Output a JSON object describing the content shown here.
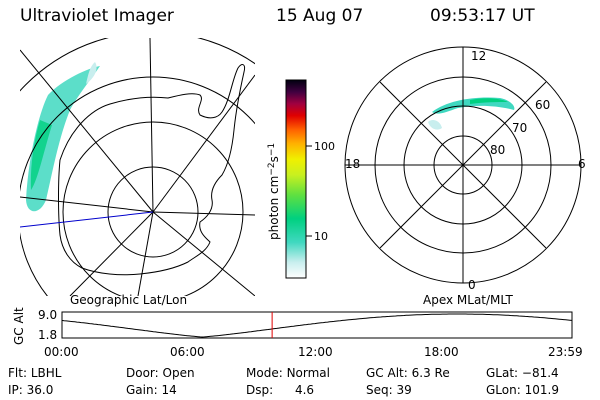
{
  "header": {
    "instrument": "Ultraviolet Imager",
    "date": "15 Aug 07",
    "time": "09:53:17 UT"
  },
  "left_panel": {
    "label": "Geographic Lat/Lon",
    "center_lat": -81.4,
    "center_lon": 101.9
  },
  "right_panel": {
    "label": "Apex MLat/MLT",
    "mlt_labels": [
      "12",
      "18",
      "6",
      "0"
    ],
    "mlat_labels": [
      "60",
      "70",
      "80"
    ]
  },
  "colorbar": {
    "unit_label": "photon cm",
    "unit_sup1": "−2",
    "unit_mid": "s",
    "unit_sup2": "−1",
    "ticks": [
      "100",
      "10"
    ],
    "scale": "log",
    "colors": [
      "#ffffff",
      "#c0ecec",
      "#40d8c0",
      "#00d080",
      "#60e040",
      "#c0f020",
      "#f0f000",
      "#ffb000",
      "#ff6000",
      "#e00000",
      "#a00040",
      "#400040",
      "#000000"
    ]
  },
  "altitude_plot": {
    "ylabel": "GC Alt",
    "yticks": [
      "9.0",
      "1.8"
    ],
    "xticks": [
      "00:00",
      "06:00",
      "12:00",
      "18:00",
      "23:59"
    ],
    "current_time_hours": 9.888,
    "marker_color": "#e00000"
  },
  "info": {
    "row1": [
      {
        "key": "Flt:",
        "value": "LBHL"
      },
      {
        "key": "Door:",
        "value": "Open"
      },
      {
        "key": "Mode:",
        "value": "Normal"
      },
      {
        "key": "GC Alt:",
        "value": "6.3 Re"
      },
      {
        "key": "GLat:",
        "value": "−81.4"
      }
    ],
    "row2": [
      {
        "key": "IP:",
        "value": "36.0"
      },
      {
        "key": "Gain:",
        "value": "14"
      },
      {
        "key": "Dsp:",
        "value": "4.6"
      },
      {
        "key": "Seq:",
        "value": "39"
      },
      {
        "key": "GLon:",
        "value": "101.9"
      }
    ]
  }
}
